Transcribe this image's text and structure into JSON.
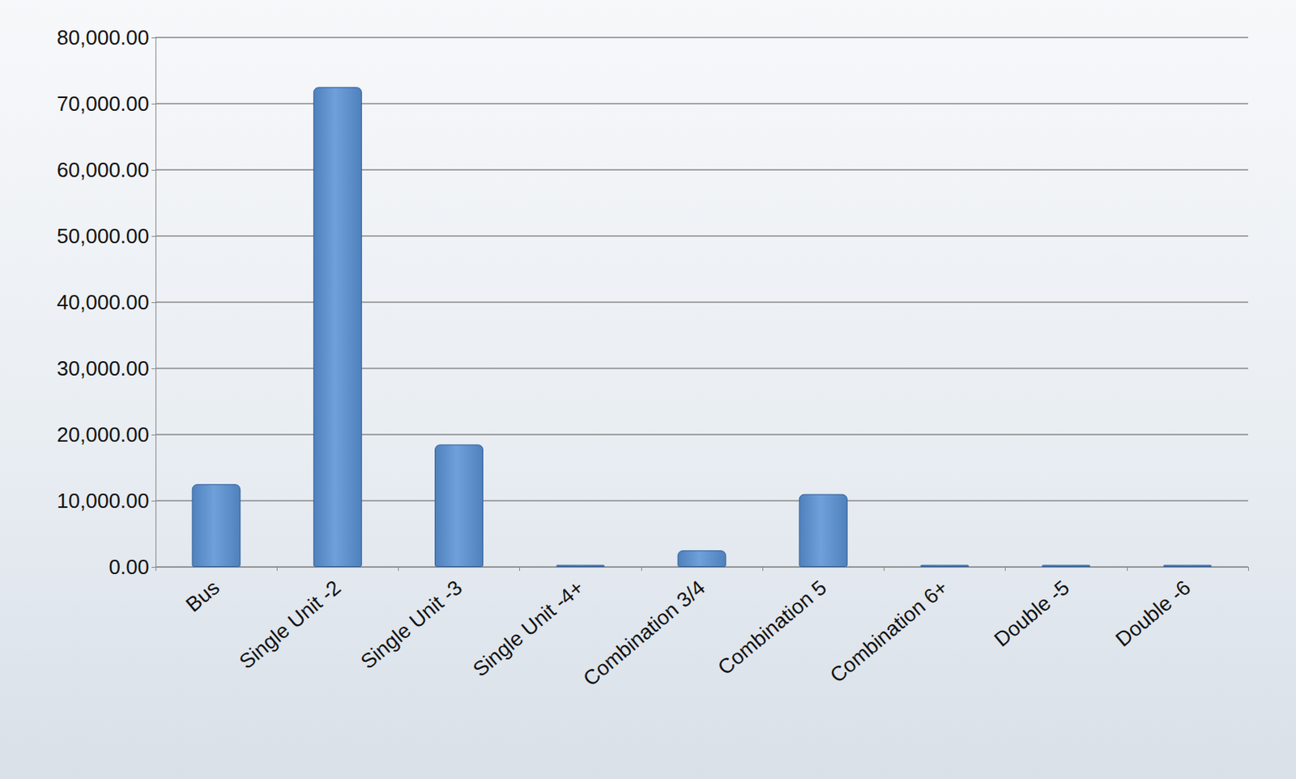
{
  "chart_data": {
    "type": "bar",
    "categories": [
      "Bus",
      "Single Unit -2",
      "Single Unit -3",
      "Single Unit -4+",
      "Combination 3/4",
      "Combination 5",
      "Combination 6+",
      "Double -5",
      "Double -6"
    ],
    "values": [
      12500,
      72500,
      18500,
      300,
      2500,
      11000,
      300,
      300,
      300
    ],
    "color": "#4f81bd",
    "ylim": [
      0,
      80000
    ],
    "yticks": [
      {
        "value": 0,
        "label": "0.00"
      },
      {
        "value": 10000,
        "label": "10,000.00"
      },
      {
        "value": 20000,
        "label": "20,000.00"
      },
      {
        "value": 30000,
        "label": "30,000.00"
      },
      {
        "value": 40000,
        "label": "40,000.00"
      },
      {
        "value": 50000,
        "label": "50,000.00"
      },
      {
        "value": 60000,
        "label": "60,000.00"
      },
      {
        "value": 70000,
        "label": "70,000.00"
      },
      {
        "value": 80000,
        "label": "80,000.00"
      }
    ],
    "grid": true
  }
}
